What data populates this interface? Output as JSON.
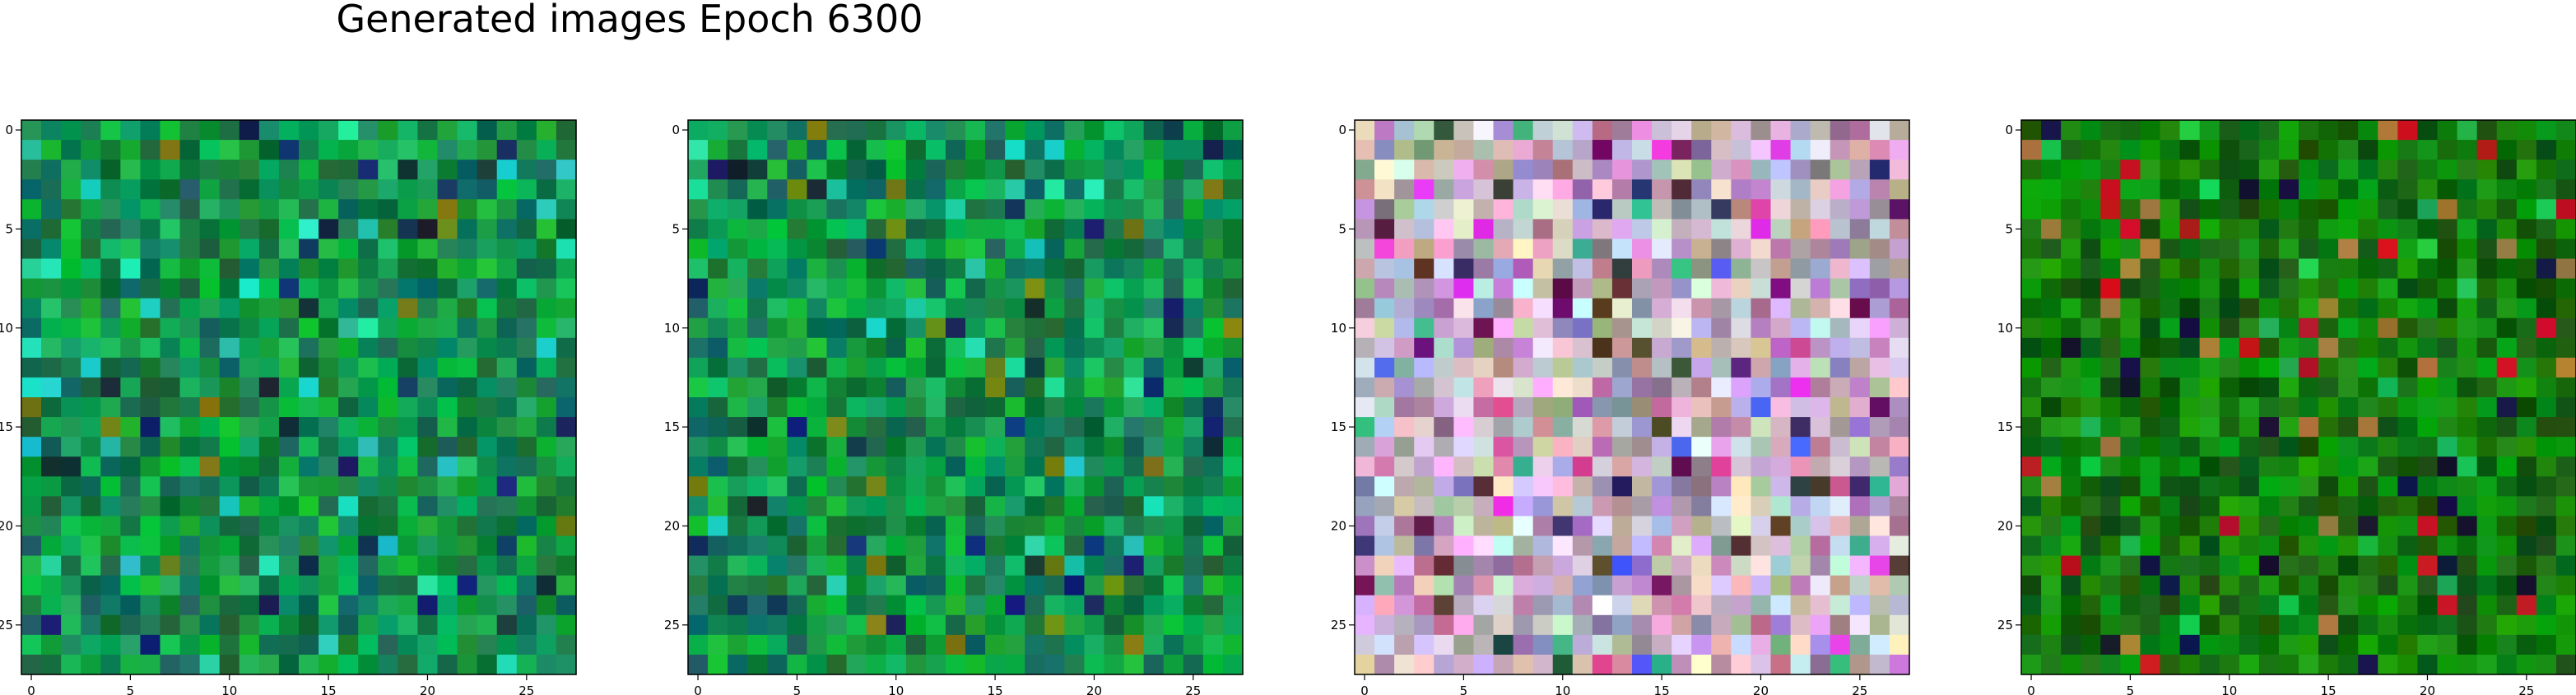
{
  "figure": {
    "title": "Generated images Epoch 6300"
  },
  "chart_data": [
    {
      "type": "heatmap",
      "subject": "generated-image-1",
      "palette": "green",
      "grid_size": 28,
      "x_ticks": [
        "0",
        "5",
        "10",
        "15",
        "20",
        "25"
      ],
      "y_ticks": [
        "0",
        "5",
        "10",
        "15",
        "20",
        "25"
      ],
      "xlim": [
        -0.5,
        27.5
      ],
      "ylim": [
        27.5,
        -0.5
      ]
    },
    {
      "type": "heatmap",
      "subject": "generated-image-2",
      "palette": "green",
      "grid_size": 28,
      "x_ticks": [
        "0",
        "5",
        "10",
        "15",
        "20",
        "25"
      ],
      "y_ticks": [
        "0",
        "5",
        "10",
        "15",
        "20",
        "25"
      ],
      "xlim": [
        -0.5,
        27.5
      ],
      "ylim": [
        27.5,
        -0.5
      ]
    },
    {
      "type": "heatmap",
      "subject": "generated-image-3",
      "palette": "pastel",
      "grid_size": 28,
      "x_ticks": [
        "0",
        "5",
        "10",
        "15",
        "20",
        "25"
      ],
      "y_ticks": [
        "0",
        "5",
        "10",
        "15",
        "20",
        "25"
      ],
      "xlim": [
        -0.5,
        27.5
      ],
      "ylim": [
        27.5,
        -0.5
      ]
    },
    {
      "type": "heatmap",
      "subject": "generated-image-4",
      "palette": "darkgreen",
      "grid_size": 28,
      "x_ticks": [
        "0",
        "5",
        "10",
        "15",
        "20",
        "25"
      ],
      "y_ticks": [
        "0",
        "5",
        "10",
        "15",
        "20",
        "25"
      ],
      "xlim": [
        -0.5,
        27.5
      ],
      "ylim": [
        27.5,
        -0.5
      ]
    }
  ]
}
